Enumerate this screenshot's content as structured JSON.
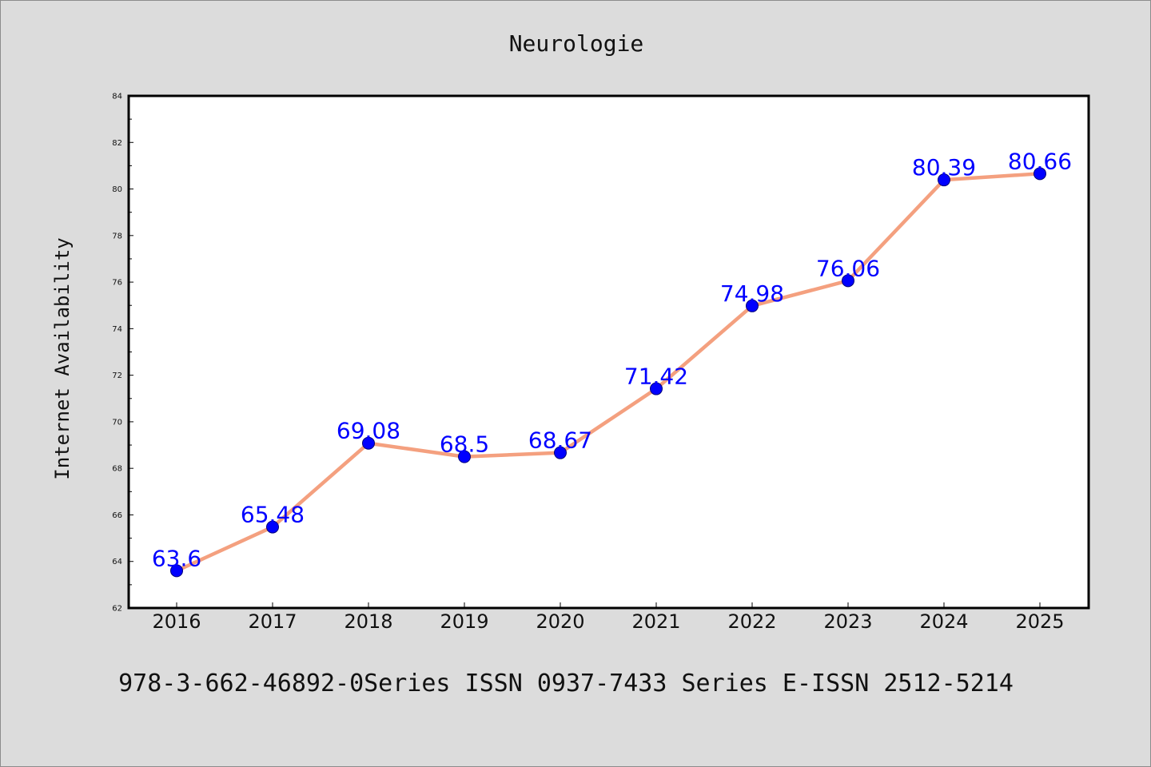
{
  "chart_data": {
    "type": "line",
    "title": "Neurologie",
    "xlabel": "",
    "ylabel": "Internet Availability",
    "categories": [
      "2016",
      "2017",
      "2018",
      "2019",
      "2020",
      "2021",
      "2022",
      "2023",
      "2024",
      "2025"
    ],
    "series": [
      {
        "values": [
          63.6,
          65.48,
          69.08,
          68.5,
          68.67,
          71.42,
          74.98,
          76.06,
          80.39,
          80.66
        ],
        "data_labels": [
          "63.6",
          "65.48",
          "69.08",
          "68.5",
          "68.67",
          "71.42",
          "74.98",
          "76.06",
          "80.39",
          "80.66"
        ]
      }
    ],
    "ylim": [
      62,
      84
    ],
    "yticks": [
      "62",
      "64",
      "66",
      "68",
      "70",
      "72",
      "74",
      "76",
      "78",
      "80",
      "82",
      "84"
    ],
    "grid": false,
    "colors": {
      "line": "#f4a07f",
      "marker": "#0000ff",
      "label": "#0000ff",
      "background": "#dcdcdc",
      "plot_background": "#ffffff"
    }
  },
  "footer": {
    "text": "978-3-662-46892-0Series ISSN 0937-7433 Series E-ISSN 2512-5214"
  }
}
